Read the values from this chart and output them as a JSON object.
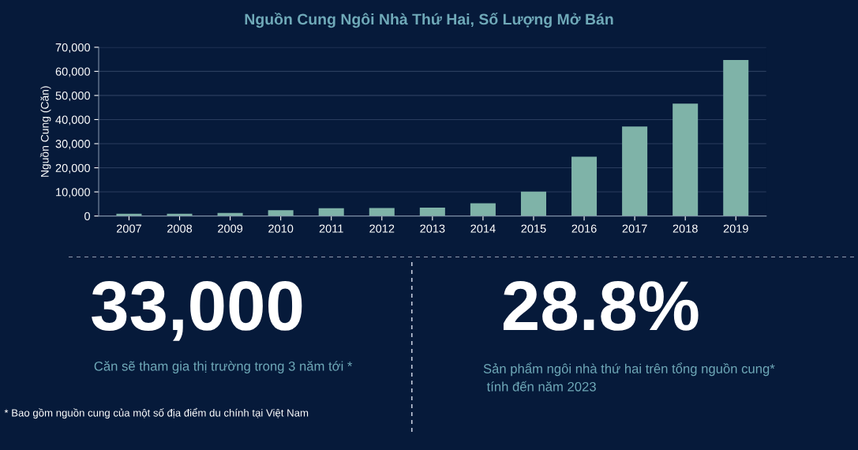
{
  "chart_data": [
    {
      "type": "bar",
      "title": "Nguồn Cung Ngôi Nhà Thứ Hai, Số Lượng Mở Bán",
      "ylabel": "Nguồn Cung (Căn)",
      "categories": [
        "2007",
        "2008",
        "2009",
        "2010",
        "2011",
        "2012",
        "2013",
        "2014",
        "2015",
        "2016",
        "2017",
        "2018",
        "2019"
      ],
      "values": [
        900,
        900,
        1300,
        2400,
        3200,
        3300,
        3500,
        5300,
        10100,
        24600,
        37100,
        46600,
        64700
      ],
      "color": "#7fb3a8",
      "ylim": [
        0,
        70000
      ],
      "yticks": [
        {
          "value": 0,
          "label": "0"
        },
        {
          "value": 10000,
          "label": "10,000"
        },
        {
          "value": 20000,
          "label": "20,000"
        },
        {
          "value": 30000,
          "label": "30,000"
        },
        {
          "value": 40000,
          "label": "40,000"
        },
        {
          "value": 50000,
          "label": "50,000"
        },
        {
          "value": 60000,
          "label": "60,000"
        },
        {
          "value": 70000,
          "label": "70,000"
        }
      ],
      "grid": "y",
      "legend": false
    },
    {
      "type": "other",
      "annotations": [
        "33,000",
        "Căn sẽ tham gia thị trường trong 3 năm tới *",
        "28.8%",
        "Sản phẩm ngôi nhà thứ hai trên tổng nguồn cung*\n tính đến năm 2023",
        "* Bao gồm nguồn cung của một số địa điểm du chính tại Việt Nam"
      ]
    }
  ]
}
